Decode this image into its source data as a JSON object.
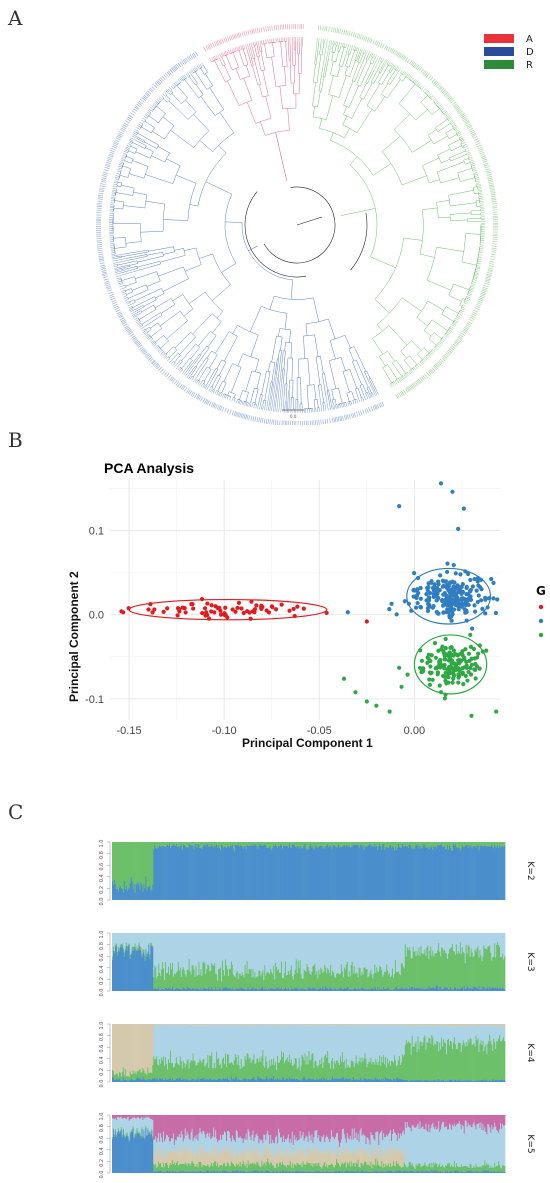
{
  "panels": {
    "a": "A",
    "b": "B",
    "c": "C"
  },
  "tree": {
    "legend": [
      {
        "label": "A",
        "color": "#e8333b"
      },
      {
        "label": "D",
        "color": "#2b4c9b"
      },
      {
        "label": "R",
        "color": "#2e8b3a"
      }
    ],
    "branch_colors": {
      "A": "#e26a8e",
      "D": "#5b82c7",
      "R": "#6fbf6a"
    },
    "scale_bar_label": "0.0"
  },
  "pca": {
    "title": "PCA Analysis",
    "legend_title": "G",
    "colors": {
      "A": "#e41a1c",
      "D": "#2f7ec1",
      "R": "#2ea843"
    }
  },
  "structure": {
    "colors": {
      "blue": "#4b8fcc",
      "green": "#6cc06a",
      "light_blue": "#acd4e6",
      "tan": "#d5c9ad",
      "magenta": "#c86ca8"
    },
    "y_ticks": [
      "0.0",
      "0.2",
      "0.4",
      "0.6",
      "0.8",
      "1.0"
    ]
  },
  "chart_data": [
    {
      "type": "tree",
      "panel": "A",
      "layout": "circular",
      "groups": [
        "A",
        "D",
        "R"
      ],
      "legend": [
        "A",
        "D",
        "R"
      ]
    },
    {
      "type": "scatter",
      "panel": "B",
      "title": "PCA Analysis",
      "xlabel": "Principal Component 1",
      "ylabel": "Principal Component 2",
      "xlim": [
        -0.16,
        0.045
      ],
      "ylim": [
        -0.125,
        0.16
      ],
      "x_ticks": [
        -0.15,
        -0.1,
        -0.05,
        0.0
      ],
      "x_tick_labels": [
        "-0.15",
        "-0.10",
        "-0.05",
        "0.00"
      ],
      "y_ticks": [
        -0.1,
        0.0,
        0.1
      ],
      "y_tick_labels": [
        "-0.1",
        "0.0",
        "0.1"
      ],
      "grid": true,
      "legend_title": "G",
      "legend_position": "right",
      "series": [
        {
          "group": "A",
          "n_points": 70,
          "center": [
            -0.098,
            0.006
          ],
          "ellipse_radius": [
            0.052,
            0.012
          ],
          "outliers": [
            [
              -0.154,
              0.004
            ],
            [
              -0.025,
              -0.008
            ]
          ]
        },
        {
          "group": "D",
          "n_points": 230,
          "center": [
            0.018,
            0.022
          ],
          "ellipse_radius": [
            0.022,
            0.033
          ],
          "outliers": [
            [
              -0.035,
              0.003
            ],
            [
              -0.012,
              0.013
            ],
            [
              -0.005,
              0.016
            ],
            [
              -0.008,
              0.129
            ],
            [
              0.014,
              0.156
            ],
            [
              0.02,
              0.146
            ],
            [
              0.026,
              0.126
            ],
            [
              0.023,
              0.102
            ]
          ]
        },
        {
          "group": "R",
          "n_points": 150,
          "center": [
            0.019,
            -0.059
          ],
          "ellipse_radius": [
            0.019,
            0.035
          ],
          "outliers": [
            [
              -0.037,
              -0.076
            ],
            [
              -0.031,
              -0.092
            ],
            [
              -0.025,
              -0.103
            ],
            [
              -0.02,
              -0.108
            ],
            [
              -0.013,
              -0.115
            ],
            [
              -0.008,
              -0.063
            ],
            [
              0.043,
              -0.115
            ],
            [
              0.03,
              -0.12
            ]
          ]
        }
      ]
    },
    {
      "type": "area",
      "panel": "C",
      "subtype": "admixture_barplot",
      "ylim": [
        0,
        1
      ],
      "y_ticks": [
        0.0,
        0.2,
        0.4,
        0.6,
        0.8,
        1.0
      ],
      "n_samples": 400,
      "plots": [
        {
          "label": "K=2",
          "segments": [
            {
              "span": [
                0.0,
                0.105
              ],
              "comps": [
                {
                  "c": "blue",
                  "v": 0.25
                },
                {
                  "c": "green",
                  "v": 0.75
                }
              ]
            },
            {
              "span": [
                0.105,
                1.0
              ],
              "comps": [
                {
                  "c": "blue",
                  "v": 0.93
                },
                {
                  "c": "green",
                  "v": 0.07
                }
              ]
            }
          ]
        },
        {
          "label": "K=3",
          "segments": [
            {
              "span": [
                0.0,
                0.105
              ],
              "comps": [
                {
                  "c": "blue",
                  "v": 0.7
                },
                {
                  "c": "green",
                  "v": 0.05
                },
                {
                  "c": "light_blue",
                  "v": 0.25
                }
              ]
            },
            {
              "span": [
                0.105,
                0.745
              ],
              "comps": [
                {
                  "c": "blue",
                  "v": 0.04
                },
                {
                  "c": "green",
                  "v": 0.3
                },
                {
                  "c": "light_blue",
                  "v": 0.66
                }
              ]
            },
            {
              "span": [
                0.745,
                1.0
              ],
              "comps": [
                {
                  "c": "blue",
                  "v": 0.05
                },
                {
                  "c": "green",
                  "v": 0.65
                },
                {
                  "c": "light_blue",
                  "v": 0.3
                }
              ]
            }
          ]
        },
        {
          "label": "K=4",
          "segments": [
            {
              "span": [
                0.0,
                0.105
              ],
              "comps": [
                {
                  "c": "blue",
                  "v": 0.05
                },
                {
                  "c": "green",
                  "v": 0.12
                },
                {
                  "c": "tan",
                  "v": 0.83
                }
              ]
            },
            {
              "span": [
                0.105,
                0.745
              ],
              "comps": [
                {
                  "c": "blue",
                  "v": 0.05
                },
                {
                  "c": "green",
                  "v": 0.3
                },
                {
                  "c": "light_blue",
                  "v": 0.63
                },
                {
                  "c": "tan",
                  "v": 0.02
                }
              ]
            },
            {
              "span": [
                0.745,
                1.0
              ],
              "comps": [
                {
                  "c": "blue",
                  "v": 0.03
                },
                {
                  "c": "green",
                  "v": 0.64
                },
                {
                  "c": "light_blue",
                  "v": 0.3
                },
                {
                  "c": "tan",
                  "v": 0.03
                }
              ]
            }
          ]
        },
        {
          "label": "K=5",
          "segments": [
            {
              "span": [
                0.0,
                0.105
              ],
              "comps": [
                {
                  "c": "blue",
                  "v": 0.68
                },
                {
                  "c": "green",
                  "v": 0.03
                },
                {
                  "c": "light_blue",
                  "v": 0.24
                },
                {
                  "c": "magenta",
                  "v": 0.05
                }
              ]
            },
            {
              "span": [
                0.105,
                0.745
              ],
              "comps": [
                {
                  "c": "blue",
                  "v": 0.03
                },
                {
                  "c": "green",
                  "v": 0.12
                },
                {
                  "c": "tan",
                  "v": 0.22
                },
                {
                  "c": "light_blue",
                  "v": 0.25
                },
                {
                  "c": "magenta",
                  "v": 0.38
                }
              ]
            },
            {
              "span": [
                0.745,
                1.0
              ],
              "comps": [
                {
                  "c": "blue",
                  "v": 0.03
                },
                {
                  "c": "green",
                  "v": 0.1
                },
                {
                  "c": "light_blue",
                  "v": 0.67
                },
                {
                  "c": "magenta",
                  "v": 0.2
                }
              ]
            }
          ]
        }
      ]
    }
  ]
}
